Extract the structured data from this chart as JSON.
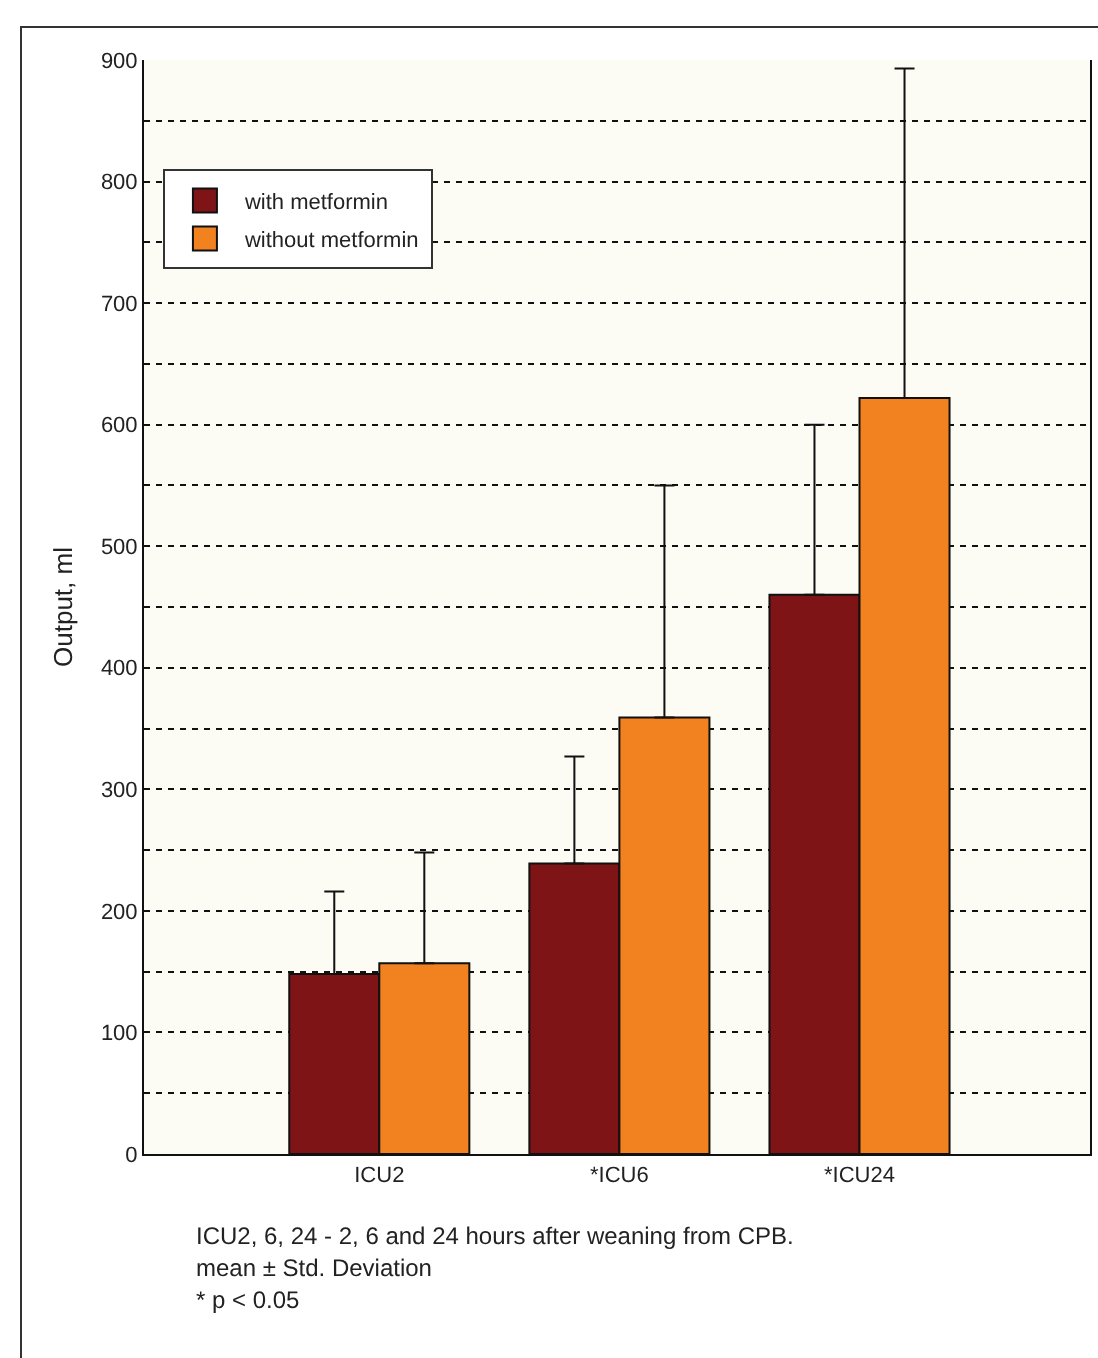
{
  "chart_data": {
    "type": "bar",
    "ylabel": "Output, ml",
    "categories": [
      "ICU2",
      "*ICU6",
      "*ICU24"
    ],
    "series": [
      {
        "name": "with metformin",
        "color": "#7f1416",
        "values": [
          148,
          239,
          460
        ],
        "errors": [
          [
            148,
            216
          ],
          [
            239,
            327
          ],
          [
            460,
            600
          ]
        ]
      },
      {
        "name": "without metformin",
        "color": "#f28220",
        "values": [
          157,
          359,
          622
        ],
        "errors": [
          [
            157,
            248
          ],
          [
            359,
            550
          ],
          [
            622,
            893
          ]
        ]
      }
    ],
    "ylim": [
      0,
      900
    ],
    "yticks": [
      0,
      {
        "value": 50,
        "label": null
      },
      100,
      {
        "value": 150,
        "label": null
      },
      200,
      {
        "value": 250,
        "label": null
      },
      300,
      {
        "value": 350,
        "label": null
      },
      400,
      {
        "value": 450,
        "label": null
      },
      500,
      {
        "value": 550,
        "label": null
      },
      600,
      {
        "value": 650,
        "label": null
      },
      700,
      {
        "value": 750,
        "label": null
      },
      800,
      {
        "value": 850,
        "label": null
      },
      900
    ],
    "grid": true,
    "legend": "top left",
    "annotations": [
      "ICU2, 6, 24 - 2, 6 and 24 hours after weaning from CPB.",
      "mean ± Std. Deviation",
      "* p < 0.05"
    ]
  }
}
